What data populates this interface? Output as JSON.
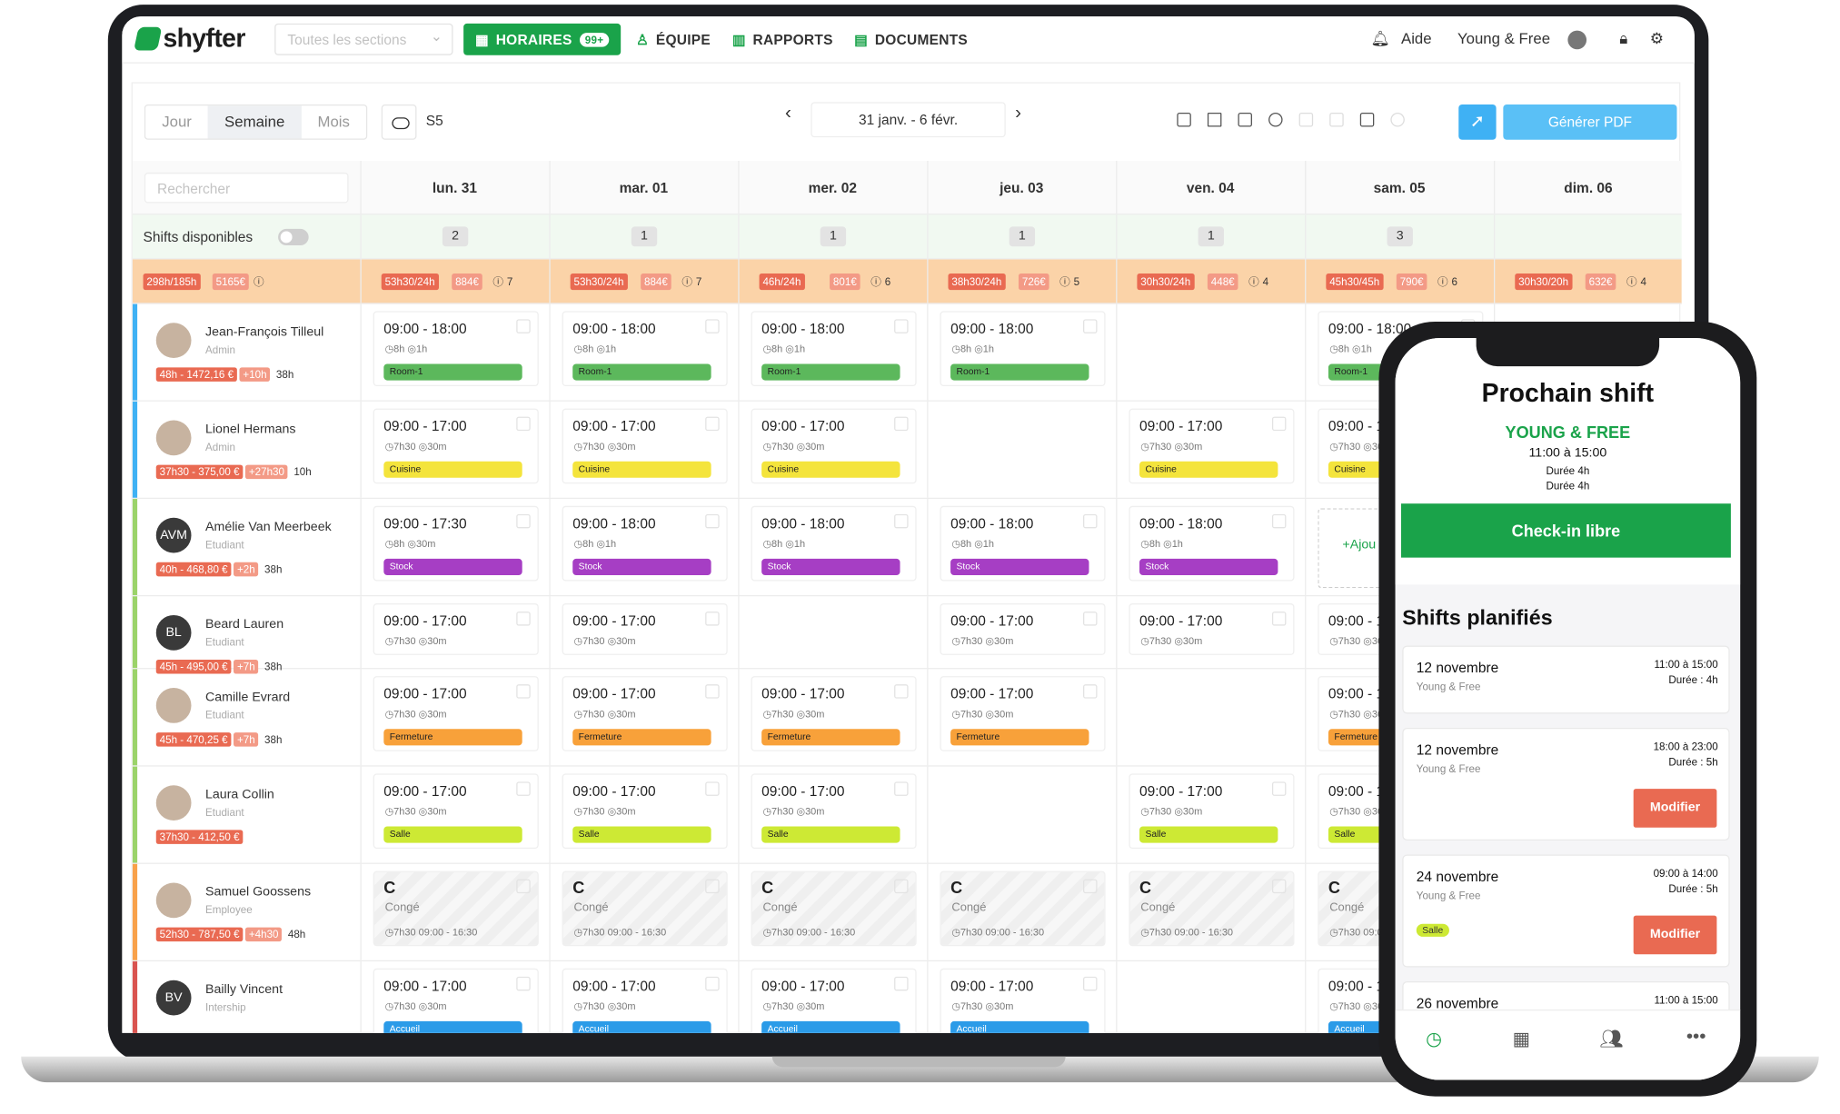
{
  "nav": {
    "logo": "shyfter",
    "sections_placeholder": "Toutes les sections",
    "horaires": "HORAIRES",
    "horaires_badge": "99+",
    "equipe": "ÉQUIPE",
    "rapports": "RAPPORTS",
    "documents": "DOCUMENTS",
    "aide": "Aide",
    "account": "Young & Free"
  },
  "toolbar": {
    "views": [
      "Jour",
      "Semaine",
      "Mois"
    ],
    "active_view": "Semaine",
    "week": "S5",
    "date_range": "31 janv. - 6 févr.",
    "pdf_label": "Générer PDF"
  },
  "grid": {
    "search_placeholder": "Rechercher",
    "days": [
      "lun. 31",
      "mar. 01",
      "mer. 02",
      "jeu. 03",
      "ven. 04",
      "sam. 05",
      "dim. 06"
    ],
    "available_label": "Shifts disponibles",
    "available_counts": [
      "2",
      "1",
      "1",
      "1",
      "1",
      "3",
      ""
    ],
    "total": {
      "hours": "298h/185h",
      "cost": "5165€"
    },
    "day_totals": [
      {
        "h": "53h30/24h",
        "c": "884€",
        "n": "7"
      },
      {
        "h": "53h30/24h",
        "c": "884€",
        "n": "7"
      },
      {
        "h": "46h/24h",
        "c": "801€",
        "n": "6"
      },
      {
        "h": "38h30/24h",
        "c": "726€",
        "n": "5"
      },
      {
        "h": "30h30/24h",
        "c": "448€",
        "n": "4"
      },
      {
        "h": "45h30/45h",
        "c": "790€",
        "n": "6"
      },
      {
        "h": "30h30/20h",
        "c": "632€",
        "n": "4"
      }
    ]
  },
  "employees": [
    {
      "name": "Jean-François Tilleul",
      "role": "Admin",
      "tag1": "48h - 1472,16 €",
      "tag2": "+10h",
      "tag3": "38h",
      "color": "#3fb1f4"
    },
    {
      "name": "Lionel Hermans",
      "role": "Admin",
      "tag1": "37h30 - 375,00 €",
      "tag2": "+27h30",
      "tag3": "10h",
      "color": "#3fb1f4"
    },
    {
      "name": "Amélie Van Meerbeek",
      "role": "Etudiant",
      "initials": "AVM",
      "tag1": "40h - 468,80 €",
      "tag2": "+2h",
      "tag3": "38h",
      "color": "#9bd36a"
    },
    {
      "name": "Beard Lauren",
      "role": "Etudiant",
      "initials": "BL",
      "tag1": "45h - 495,00 €",
      "tag2": "+7h",
      "tag3": "38h",
      "color": "#9bd36a"
    },
    {
      "name": "Camille Evrard",
      "role": "Etudiant",
      "tag1": "45h - 470,25 €",
      "tag2": "+7h",
      "tag3": "38h",
      "color": "#9bd36a"
    },
    {
      "name": "Laura Collin",
      "role": "Etudiant",
      "tag1": "37h30 - 412,50 €",
      "tag2": "",
      "tag3": "",
      "color": "#9bd36a"
    },
    {
      "name": "Samuel Goossens",
      "role": "Employee",
      "tag1": "52h30 - 787,50 €",
      "tag2": "+4h30",
      "tag3": "48h",
      "color": "#f8a14a"
    },
    {
      "name": "Bailly Vincent",
      "role": "Intership",
      "initials": "BV",
      "tag1": "",
      "tag2": "",
      "tag3": "",
      "color": "#d9534f"
    }
  ],
  "shift_rows": [
    {
      "time": "09:00 - 18:00",
      "meta": "◷8h  ◎1h",
      "tag": "Room-1",
      "tag_color": "#5cb85c",
      "days": [
        1,
        1,
        1,
        1,
        0,
        1,
        0
      ]
    },
    {
      "time": "09:00 - 17:00",
      "meta": "◷7h30  ◎30m",
      "tag": "Cuisine",
      "tag_color": "#f4e43c",
      "days": [
        1,
        1,
        1,
        0,
        1,
        1,
        0
      ]
    },
    {
      "time": "09:00 - 17:30",
      "time_alt": "09:00 - 18:00",
      "meta": "◷8h  ◎30m",
      "meta_alt": "◷8h  ◎1h",
      "tag": "Stock",
      "tag_color": "#a63ec4",
      "days": [
        1,
        1,
        1,
        1,
        1,
        0,
        0
      ]
    },
    {
      "time": "09:00 - 17:00",
      "meta": "◷7h30  ◎30m",
      "tag": "",
      "tag_color": "",
      "days": [
        1,
        1,
        0,
        1,
        1,
        1,
        0
      ]
    },
    {
      "time": "09:00 - 17:00",
      "meta": "◷7h30  ◎30m",
      "tag": "Fermeture",
      "tag_color": "#f8a13a",
      "days": [
        1,
        1,
        1,
        1,
        0,
        1,
        0
      ]
    },
    {
      "time": "09:00 - 17:00",
      "meta": "◷7h30  ◎30m",
      "tag": "Salle",
      "tag_color": "#cde934",
      "days": [
        1,
        1,
        1,
        0,
        1,
        1,
        0
      ]
    },
    {
      "leave": true,
      "c": "C",
      "label": "Congé",
      "meta": "◷7h30  09:00 - 16:30",
      "days": [
        1,
        1,
        1,
        1,
        1,
        1,
        0
      ]
    },
    {
      "time": "09:00 - 17:00",
      "meta": "◷7h30  ◎30m",
      "tag": "Accueil",
      "tag_color": "#2b9be8",
      "days": [
        1,
        1,
        1,
        1,
        0,
        1,
        0
      ]
    }
  ],
  "add_label": "+Ajou",
  "phone": {
    "title": "Prochain shift",
    "company": "YOUNG & FREE",
    "time": "11:00 à 15:00",
    "duration1": "Durée 4h",
    "duration2": "Durée 4h",
    "checkin": "Check-in libre",
    "planned_title": "Shifts planifiés",
    "cards": [
      {
        "date": "12 novembre",
        "sub": "Young & Free",
        "time": "11:00 à 15:00",
        "dur": "Durée : 4h",
        "button": "",
        "tag": ""
      },
      {
        "date": "12 novembre",
        "sub": "Young & Free",
        "time": "18:00 à 23:00",
        "dur": "Durée : 5h",
        "button": "Modifier",
        "tag": ""
      },
      {
        "date": "24 novembre",
        "sub": "Young & Free",
        "time": "09:00 à 14:00",
        "dur": "Durée : 5h",
        "button": "Modifier",
        "tag": "Salle"
      },
      {
        "date": "26 novembre",
        "sub": "",
        "time": "11:00 à 15:00",
        "dur": "",
        "button": "",
        "tag": ""
      }
    ]
  }
}
